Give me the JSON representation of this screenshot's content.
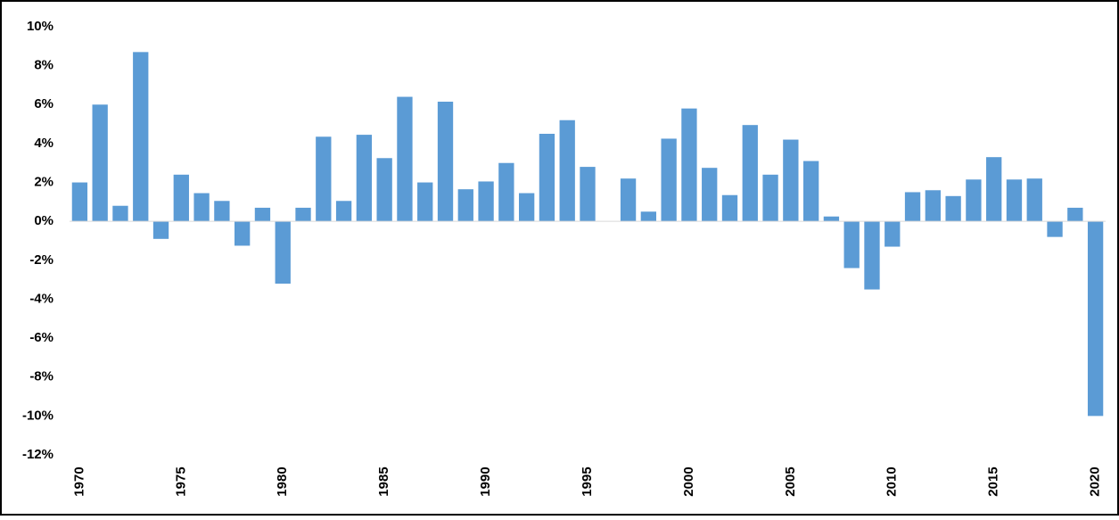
{
  "chart_data": {
    "type": "bar",
    "color": "#5b9bd5",
    "categories": [
      "1970",
      null,
      null,
      null,
      null,
      "1975",
      null,
      null,
      null,
      null,
      "1980",
      null,
      null,
      null,
      null,
      "1985",
      null,
      null,
      null,
      null,
      "1990",
      null,
      null,
      null,
      null,
      "1995",
      null,
      null,
      null,
      null,
      "2000",
      null,
      null,
      null,
      null,
      "2005",
      null,
      null,
      null,
      null,
      "2010",
      null,
      null,
      null,
      null,
      "2015",
      null,
      null,
      null,
      null,
      "2020"
    ],
    "values": [
      2.0,
      6.0,
      0.8,
      8.7,
      -0.9,
      2.4,
      1.45,
      1.05,
      -1.25,
      0.7,
      -3.2,
      0.7,
      4.35,
      1.05,
      4.45,
      3.25,
      6.4,
      2.0,
      6.15,
      1.65,
      2.05,
      3.0,
      1.45,
      4.5,
      5.2,
      2.8,
      0,
      2.2,
      0.5,
      4.25,
      5.8,
      2.75,
      1.35,
      4.95,
      2.4,
      4.2,
      3.1,
      0.25,
      -2.4,
      -3.5,
      -1.3,
      1.5,
      1.6,
      1.3,
      2.15,
      3.3,
      2.15,
      2.2,
      -0.8,
      0.7,
      -10.0
    ],
    "ylim": [
      -12,
      10
    ],
    "yticks": [
      {
        "value": 10,
        "label": "10%"
      },
      {
        "value": 8,
        "label": "8%"
      },
      {
        "value": 6,
        "label": "6%"
      },
      {
        "value": 4,
        "label": "4%"
      },
      {
        "value": 2,
        "label": "2%"
      },
      {
        "value": 0,
        "label": "0%"
      },
      {
        "value": -2,
        "label": "-2%"
      },
      {
        "value": -4,
        "label": "-4%"
      },
      {
        "value": -6,
        "label": "-6%"
      },
      {
        "value": -8,
        "label": "-8%"
      },
      {
        "value": -10,
        "label": "-10%"
      },
      {
        "value": -12,
        "label": "-12%"
      }
    ]
  }
}
